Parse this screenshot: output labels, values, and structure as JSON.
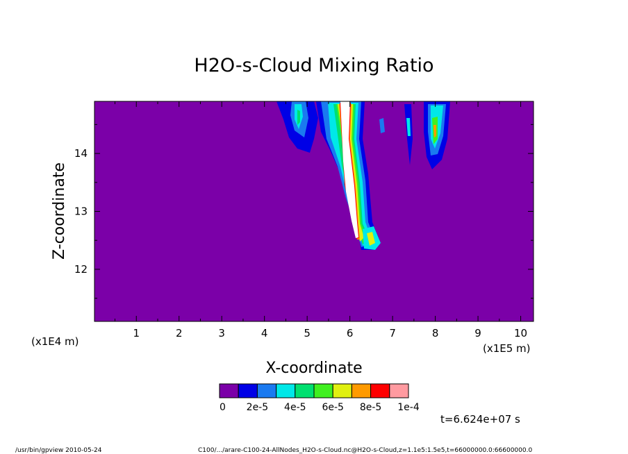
{
  "chart_data": {
    "type": "heatmap",
    "title": "H2O-s-Cloud Mixing Ratio",
    "xlabel": "X-coordinate",
    "ylabel": "Z-coordinate",
    "x_unit": "(x1E5 m)",
    "y_unit": "(x1E4 m)",
    "x_ticks": [
      1,
      2,
      3,
      4,
      5,
      6,
      7,
      8,
      9,
      10
    ],
    "y_ticks": [
      12,
      13,
      14
    ],
    "xlim": [
      0.02,
      10.3
    ],
    "ylim": [
      11.1,
      14.9
    ],
    "colorbar": {
      "colors": [
        "#7b00a8",
        "#0000e6",
        "#1a7af0",
        "#00e8e8",
        "#00e070",
        "#40f020",
        "#e0f010",
        "#ff9a00",
        "#ff0000",
        "#ff9aa0"
      ],
      "tick_labels": [
        "0",
        "2e-5",
        "4e-5",
        "6e-5",
        "8e-5",
        "1e-4"
      ]
    },
    "background_color": "#7b00a8",
    "annotation": "t=6.624e+07 s"
  },
  "footer": {
    "left": "/usr/bin/gpview  2010-05-24",
    "right": "C100/.../arare-C100-24-AllNodes_H2O-s-Cloud.nc@H2O-s-Cloud,z=1.1e5:1.5e5,t=66000000.0:66600000.0"
  }
}
